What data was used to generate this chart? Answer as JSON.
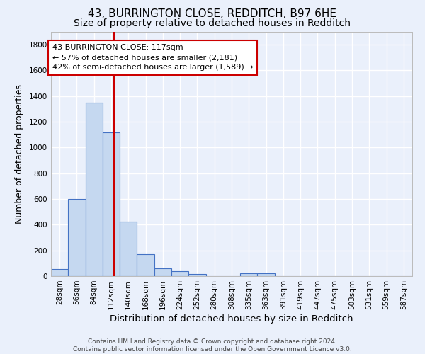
{
  "title1": "43, BURRINGTON CLOSE, REDDITCH, B97 6HE",
  "title2": "Size of property relative to detached houses in Redditch",
  "xlabel": "Distribution of detached houses by size in Redditch",
  "ylabel": "Number of detached properties",
  "bar_labels": [
    "28sqm",
    "56sqm",
    "84sqm",
    "112sqm",
    "140sqm",
    "168sqm",
    "196sqm",
    "224sqm",
    "252sqm",
    "280sqm",
    "308sqm",
    "335sqm",
    "363sqm",
    "391sqm",
    "419sqm",
    "447sqm",
    "475sqm",
    "503sqm",
    "531sqm",
    "559sqm",
    "587sqm"
  ],
  "bar_values": [
    55,
    600,
    1350,
    1120,
    425,
    170,
    60,
    40,
    15,
    0,
    0,
    20,
    20,
    0,
    0,
    0,
    0,
    0,
    0,
    0,
    0
  ],
  "bar_color": "#c5d8f0",
  "bar_edgecolor": "#4472c4",
  "background_color": "#eaf0fb",
  "grid_color": "#ffffff",
  "property_size": 117,
  "bin_width": 28,
  "red_line_color": "#cc0000",
  "annotation_line1": "43 BURRINGTON CLOSE: 117sqm",
  "annotation_line2": "← 57% of detached houses are smaller (2,181)",
  "annotation_line3": "42% of semi-detached houses are larger (1,589) →",
  "annotation_box_edgecolor": "#cc0000",
  "annotation_box_facecolor": "#ffffff",
  "ylim": [
    0,
    1900
  ],
  "yticks": [
    0,
    200,
    400,
    600,
    800,
    1000,
    1200,
    1400,
    1600,
    1800
  ],
  "footer_text": "Contains HM Land Registry data © Crown copyright and database right 2024.\nContains public sector information licensed under the Open Government Licence v3.0.",
  "title1_fontsize": 11,
  "title2_fontsize": 10,
  "xlabel_fontsize": 9.5,
  "ylabel_fontsize": 9,
  "tick_fontsize": 7.5,
  "footer_fontsize": 6.5,
  "annotation_fontsize": 8
}
